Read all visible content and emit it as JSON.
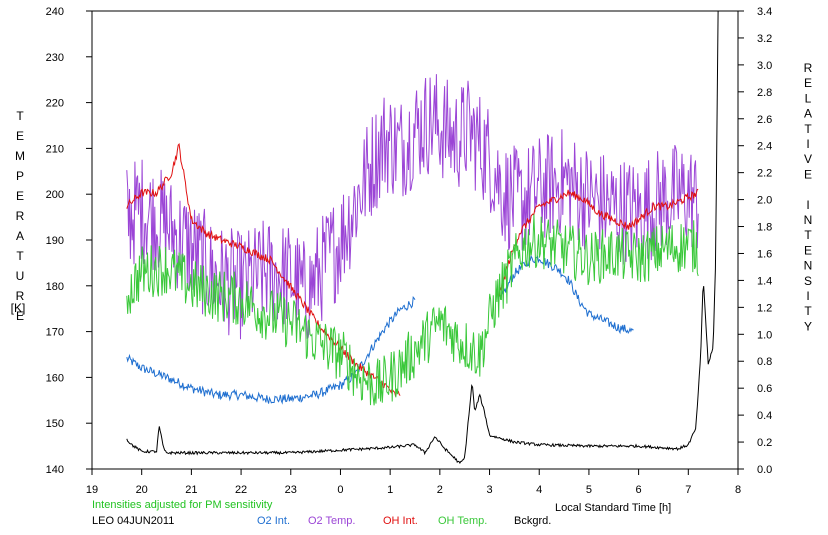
{
  "chart_data": {
    "type": "line",
    "title": "",
    "station_date": "LEO 04JUN2011",
    "note": "Intensities adjusted for PM sensitivity",
    "xlabel": "Local Standard Time [h]",
    "xlim": [
      19,
      8
    ],
    "x_ticks": [
      "19",
      "20",
      "21",
      "22",
      "23",
      "0",
      "1",
      "2",
      "3",
      "4",
      "5",
      "6",
      "7",
      "8"
    ],
    "ylabel_left_letters": [
      "T",
      "E",
      "M",
      "P",
      "E",
      "R",
      "A",
      "T",
      "U",
      "R",
      "E"
    ],
    "ylabel_left_unit": "[K]",
    "ylim_left": [
      140,
      240
    ],
    "y_ticks_left": [
      "140",
      "150",
      "160",
      "170",
      "180",
      "190",
      "200",
      "210",
      "220",
      "230",
      "240"
    ],
    "ylabel_right_letters": [
      "R",
      "E",
      "L",
      "A",
      "T",
      "I",
      "V",
      "E",
      "",
      "I",
      "N",
      "T",
      "E",
      "N",
      "S",
      "I",
      "T",
      "Y"
    ],
    "ylim_right": [
      0.0,
      3.4
    ],
    "y_ticks_right": [
      "0.0",
      "0.2",
      "0.4",
      "0.6",
      "0.8",
      "1.0",
      "1.2",
      "1.4",
      "1.6",
      "1.8",
      "2.0",
      "2.2",
      "2.4",
      "2.6",
      "2.8",
      "3.0",
      "3.2",
      "3.4"
    ],
    "grid": false,
    "legend_position": "bottom",
    "note_color": "#22c322",
    "series": [
      {
        "name": "O2 Int.",
        "axis": "right",
        "color": "#1f6fd0",
        "noise": 0.035,
        "x": [
          19.7,
          20.0,
          20.5,
          21.0,
          21.5,
          22.0,
          22.5,
          23.0,
          23.5,
          0.0,
          0.3,
          0.6,
          0.9,
          1.2,
          1.5
        ],
        "values": [
          0.82,
          0.75,
          0.68,
          0.6,
          0.55,
          0.55,
          0.52,
          0.52,
          0.55,
          0.62,
          0.7,
          0.88,
          1.05,
          1.18,
          1.25
        ],
        "x2": [
          3.2,
          3.5,
          3.8,
          4.0,
          4.2,
          4.4,
          4.6,
          4.8,
          5.0,
          5.3,
          5.6,
          5.9
        ],
        "values2": [
          1.25,
          1.45,
          1.55,
          1.57,
          1.52,
          1.48,
          1.4,
          1.25,
          1.15,
          1.1,
          1.05,
          1.02
        ]
      },
      {
        "name": "O2 Temp.",
        "axis": "left",
        "color": "#9b45d6",
        "noise": 12,
        "x": [
          19.7,
          20.0,
          20.5,
          21.0,
          21.5,
          22.0,
          22.5,
          23.0,
          23.3,
          23.7,
          0.0,
          0.3,
          0.6,
          0.9,
          1.2,
          1.5,
          1.8,
          2.0,
          2.3,
          2.6,
          3.0,
          3.3,
          3.6,
          4.0,
          4.5,
          5.0,
          5.5,
          6.0,
          6.5,
          7.0,
          7.2
        ],
        "values": [
          195,
          197,
          193,
          188,
          182,
          180,
          183,
          182,
          178,
          185,
          190,
          198,
          206,
          212,
          210,
          214,
          216,
          215,
          212,
          214,
          208,
          200,
          198,
          201,
          203,
          199,
          197,
          196,
          199,
          200,
          198
        ]
      },
      {
        "name": "OH Int.",
        "axis": "right",
        "color": "#e01010",
        "noise": 0.03,
        "x": [
          19.7,
          20.0,
          20.3,
          20.6,
          20.75,
          21.0,
          21.3,
          21.6,
          22.0,
          22.3,
          22.6,
          23.0,
          23.3,
          23.6,
          0.0,
          0.3,
          0.6,
          0.9,
          1.1,
          1.2
        ],
        "values": [
          1.95,
          2.05,
          2.05,
          2.2,
          2.4,
          1.85,
          1.75,
          1.7,
          1.65,
          1.6,
          1.55,
          1.35,
          1.2,
          1.05,
          0.9,
          0.78,
          0.7,
          0.62,
          0.55,
          0.56
        ],
        "x2": [
          3.2,
          3.4,
          3.6,
          3.8,
          4.0,
          4.3,
          4.6,
          4.9,
          5.2,
          5.5,
          5.8,
          6.0,
          6.3,
          6.6,
          6.9,
          7.2
        ],
        "values2": [
          1.3,
          1.55,
          1.75,
          1.85,
          1.95,
          2.0,
          2.05,
          2.0,
          1.9,
          1.85,
          1.8,
          1.85,
          1.95,
          1.95,
          2.0,
          2.05
        ]
      },
      {
        "name": "OH Temp.",
        "axis": "left",
        "color": "#3ac83a",
        "noise": 6,
        "x": [
          19.7,
          20.0,
          20.5,
          21.0,
          21.5,
          22.0,
          22.5,
          23.0,
          23.5,
          0.0,
          0.4,
          0.8,
          1.2,
          1.6,
          2.0,
          2.4,
          2.8,
          3.1,
          3.4,
          3.7,
          4.0,
          4.5,
          5.0,
          5.5,
          6.0,
          6.5,
          7.0,
          7.2
        ],
        "values": [
          178,
          183,
          184,
          180,
          178,
          177,
          174,
          172,
          168,
          165,
          160,
          158,
          162,
          167,
          172,
          168,
          165,
          176,
          183,
          189,
          190,
          188,
          186,
          187,
          186,
          188,
          189,
          188
        ]
      },
      {
        "name": "Bckgrd.",
        "axis": "right",
        "color": "#000000",
        "noise": 0.01,
        "x": [
          19.7,
          19.8,
          20.0,
          20.3,
          20.35,
          20.45,
          20.5,
          21.0,
          22.0,
          23.0,
          0.0,
          1.0,
          1.5,
          1.7,
          1.9,
          2.1,
          2.3,
          2.4,
          2.5,
          2.65,
          2.7,
          2.8,
          2.9,
          3.0,
          3.2,
          3.5,
          4.0,
          5.0,
          6.0,
          6.8,
          7.0,
          7.15,
          7.25,
          7.3,
          7.4,
          7.5,
          7.55,
          7.6
        ],
        "values": [
          0.22,
          0.18,
          0.13,
          0.13,
          0.32,
          0.14,
          0.12,
          0.12,
          0.12,
          0.12,
          0.14,
          0.16,
          0.18,
          0.12,
          0.24,
          0.15,
          0.08,
          0.04,
          0.08,
          0.65,
          0.42,
          0.55,
          0.42,
          0.25,
          0.23,
          0.2,
          0.18,
          0.17,
          0.17,
          0.15,
          0.18,
          0.3,
          0.85,
          1.42,
          0.78,
          0.9,
          1.55,
          3.4
        ]
      }
    ]
  }
}
